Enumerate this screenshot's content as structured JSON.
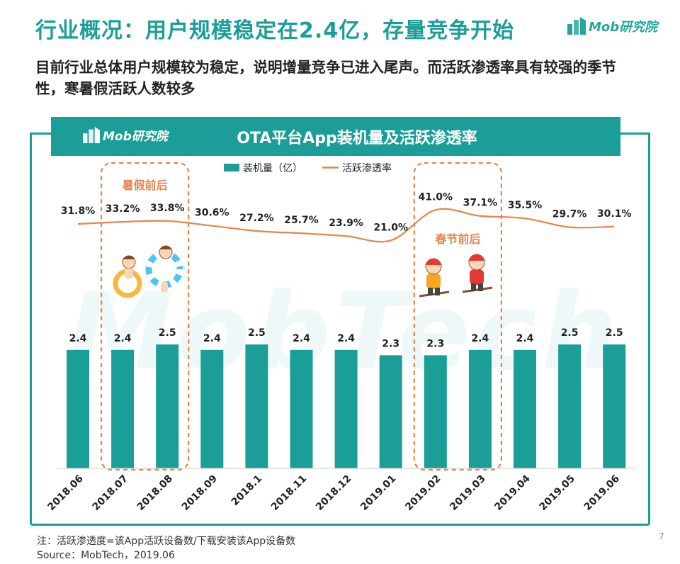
{
  "header": {
    "title": "行业概况：用户规模稳定在2.4亿，存量竞争开始",
    "logo_text": "Mob研究院",
    "subtitle": "目前行业总体用户规模较为稳定，说明增量竞争已进入尾声。而活跃渗透率具有较强的季节性，寒暑假活跃人数较多"
  },
  "banner": {
    "logo_text": "Mob研究院",
    "title": "OTA平台App装机量及活跃渗透率"
  },
  "chart_data": {
    "type": "bar",
    "title": "OTA平台App装机量及活跃渗透率",
    "categories": [
      "2018.06",
      "2018.07",
      "2018.08",
      "2018.09",
      "2018.1",
      "2018.11",
      "2018.12",
      "2019.01",
      "2019.02",
      "2019.03",
      "2019.04",
      "2019.05",
      "2019.06"
    ],
    "series": [
      {
        "name": "装机量（亿）",
        "kind": "bar",
        "color": "#1a9e97",
        "values": [
          2.4,
          2.4,
          2.5,
          2.4,
          2.5,
          2.4,
          2.4,
          2.3,
          2.3,
          2.4,
          2.4,
          2.5,
          2.5
        ],
        "labels": [
          "2.4",
          "2.4",
          "2.5",
          "2.4",
          "2.5",
          "2.4",
          "2.4",
          "2.3",
          "2.3",
          "2.4",
          "2.4",
          "2.5",
          "2.5"
        ]
      },
      {
        "name": "活跃渗透率",
        "kind": "line",
        "color": "#e8844a",
        "values": [
          31.8,
          33.2,
          33.8,
          30.6,
          27.2,
          25.7,
          23.9,
          21.0,
          41.0,
          37.1,
          35.5,
          29.7,
          30.1
        ],
        "labels": [
          "31.8%",
          "33.2%",
          "33.8%",
          "30.6%",
          "27.2%",
          "25.7%",
          "23.9%",
          "21.0%",
          "41.0%",
          "37.1%",
          "35.5%",
          "29.7%",
          "30.1%"
        ]
      }
    ],
    "legend": "top-center",
    "grid": false,
    "watermark": "MobTech",
    "annotations": [
      {
        "text": "暑假前后",
        "categories": [
          "2018.07",
          "2018.08"
        ],
        "color": "#e8844a"
      },
      {
        "text": "春节前后",
        "categories": [
          "2019.02",
          "2019.03"
        ],
        "color": "#e8844a"
      }
    ]
  },
  "footer": {
    "note": "注：活跃渗透度=该App活跃设备数/下载安装该App设备数",
    "source": "Source：MobTech，2019.06",
    "page": "7"
  }
}
